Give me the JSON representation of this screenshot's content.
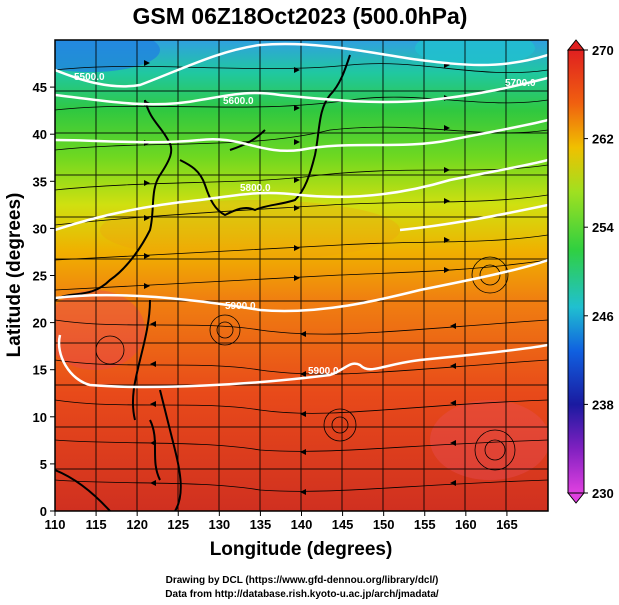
{
  "title": "GSM 06Z18Oct2023 (500.0hPa)",
  "axes": {
    "xlabel": "Longitude (degrees)",
    "ylabel": "Latitude  (degrees)",
    "xlim": [
      110,
      170
    ],
    "ylim": [
      0,
      50
    ],
    "xticks": [
      "110",
      "115",
      "120",
      "125",
      "130",
      "135",
      "140",
      "145",
      "150",
      "155",
      "160",
      "165"
    ],
    "yticks": [
      "0",
      "5",
      "10",
      "15",
      "20",
      "25",
      "30",
      "35",
      "40",
      "45"
    ],
    "grid": true
  },
  "colorbar": {
    "ticks": [
      "230",
      "238",
      "246",
      "254",
      "262",
      "270"
    ],
    "range": [
      230,
      270
    ],
    "colors": [
      "#e040e0",
      "#1a1aa0",
      "#1060e0",
      "#20c0d0",
      "#30d040",
      "#a0e020",
      "#f0c000",
      "#f06010",
      "#e02020"
    ]
  },
  "contours": {
    "color": "#ffffff",
    "labels": [
      "5500.0",
      "5600.0",
      "5700.0",
      "5800.0",
      "5900.0",
      "5900.0"
    ]
  },
  "credits": {
    "line1": "Drawing by DCL (https://www.gfd-dennou.org/library/dcl/)",
    "line2": "Data from http://database.rish.kyoto-u.ac.jp/arch/jmadata/"
  }
}
